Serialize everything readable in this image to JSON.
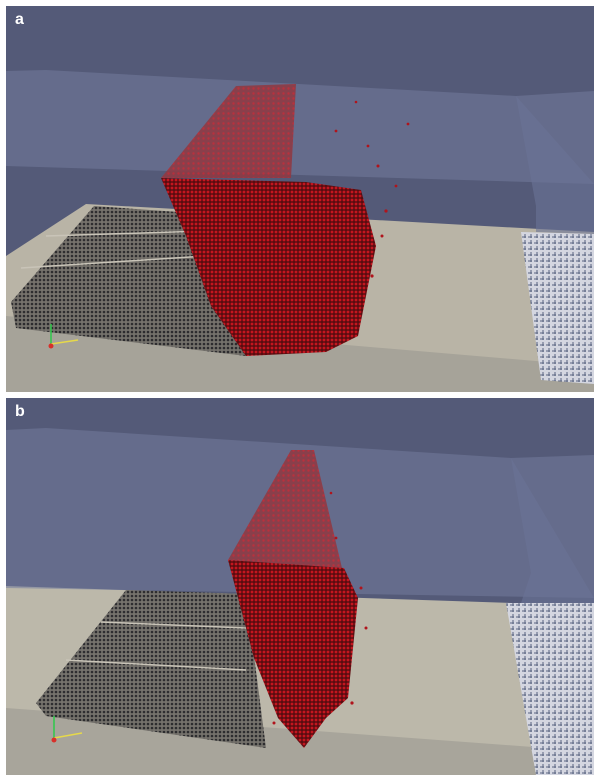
{
  "figure": {
    "panels": [
      {
        "label": "a"
      },
      {
        "label": "b"
      }
    ]
  },
  "colors": {
    "background": "#555a78",
    "tank_top": "#677091",
    "tank_front": "#5f678b",
    "floor": "#bdb8aa",
    "particles_fluid": "#b0141c",
    "particles_boundary": "#3a3a3e",
    "mesh": "#c9cbd6"
  },
  "icons": [
    "axes-triad-icon",
    "axes-triad-icon"
  ]
}
